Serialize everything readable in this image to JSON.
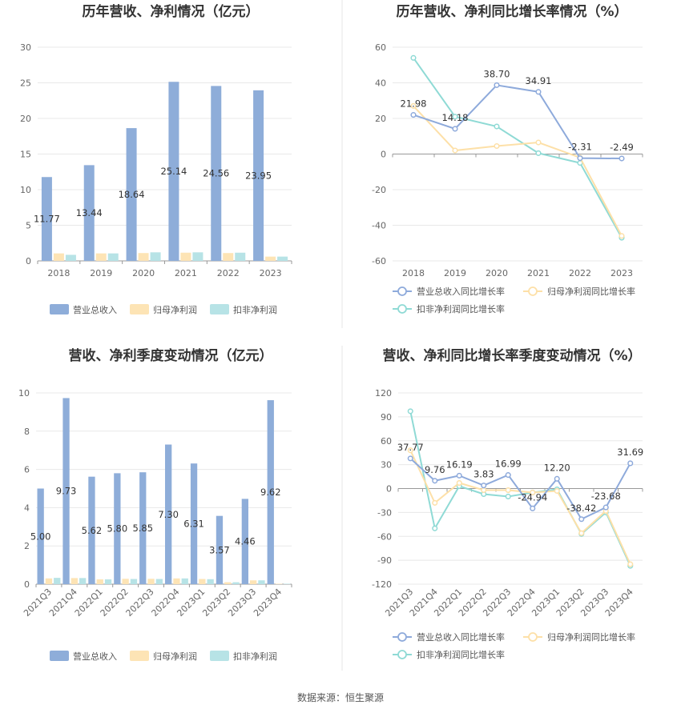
{
  "source": "数据来源：恒生聚源",
  "colors": {
    "revenue": "#8eadd9",
    "netprofit": "#fde4b5",
    "deducted": "#b7e3e6",
    "rev_line": "#8eaadb",
    "np_line": "#fde0a8",
    "ded_line": "#8fdad5"
  },
  "chart_data": [
    {
      "type": "bar",
      "title": "历年营收、净利情况（亿元）",
      "categories": [
        "2018",
        "2019",
        "2020",
        "2021",
        "2022",
        "2023"
      ],
      "ylim": [
        0,
        30
      ],
      "yticks": [
        0,
        5,
        10,
        15,
        20,
        25,
        30
      ],
      "legend_position": "bottom",
      "series": [
        {
          "name": "营业总收入",
          "values": [
            11.77,
            13.44,
            18.64,
            25.14,
            24.56,
            23.95
          ],
          "labels": [
            "11.77",
            "13.44",
            "18.64",
            "25.14",
            "24.56",
            "23.95"
          ]
        },
        {
          "name": "归母净利润",
          "values": [
            1.05,
            1.05,
            1.1,
            1.15,
            1.1,
            0.6
          ]
        },
        {
          "name": "扣非净利润",
          "values": [
            0.85,
            1.05,
            1.2,
            1.2,
            1.15,
            0.6
          ]
        }
      ]
    },
    {
      "type": "line",
      "title": "历年营收、净利同比增长率情况（%）",
      "categories": [
        "2018",
        "2019",
        "2020",
        "2021",
        "2022",
        "2023"
      ],
      "ylim": [
        -60,
        60
      ],
      "yticks": [
        -60,
        -40,
        -20,
        0,
        20,
        40,
        60
      ],
      "legend_position": "bottom",
      "series": [
        {
          "name": "营业总收入同比增长率",
          "values": [
            21.98,
            14.18,
            38.7,
            34.91,
            -2.31,
            -2.49
          ],
          "labels": [
            "21.98",
            "14.18",
            "38.70",
            "34.91",
            "-2.31",
            "-2.49"
          ]
        },
        {
          "name": "归母净利润同比增长率",
          "values": [
            27,
            2,
            4.5,
            6.5,
            -2,
            -46
          ]
        },
        {
          "name": "扣非净利润同比增长率",
          "values": [
            54,
            21,
            15.5,
            0.5,
            -5,
            -47
          ]
        }
      ]
    },
    {
      "type": "bar",
      "title": "营收、净利季度变动情况（亿元）",
      "categories": [
        "2021Q3",
        "2021Q4",
        "2022Q1",
        "2022Q2",
        "2022Q3",
        "2022Q4",
        "2023Q1",
        "2023Q2",
        "2023Q3",
        "2023Q4"
      ],
      "ylim": [
        0,
        10
      ],
      "yticks": [
        0,
        2,
        4,
        6,
        8,
        10
      ],
      "legend_position": "bottom",
      "series": [
        {
          "name": "营业总收入",
          "values": [
            5.0,
            9.73,
            5.62,
            5.8,
            5.85,
            7.3,
            6.31,
            3.57,
            4.46,
            9.62
          ],
          "labels": [
            "5.00",
            "9.73",
            "5.62",
            "5.80",
            "5.85",
            "7.30",
            "6.31",
            "3.57",
            "4.46",
            "9.62"
          ]
        },
        {
          "name": "归母净利润",
          "values": [
            0.3,
            0.32,
            0.25,
            0.28,
            0.28,
            0.3,
            0.27,
            0.1,
            0.2,
            0.02
          ]
        },
        {
          "name": "扣非净利润",
          "values": [
            0.33,
            0.32,
            0.25,
            0.27,
            0.27,
            0.3,
            0.26,
            0.1,
            0.2,
            0.02
          ]
        }
      ]
    },
    {
      "type": "line",
      "title": "营收、净利同比增长率季度变动情况（%）",
      "categories": [
        "2021Q3",
        "2021Q4",
        "2022Q1",
        "2022Q2",
        "2022Q3",
        "2022Q4",
        "2023Q1",
        "2023Q2",
        "2023Q3",
        "2023Q4"
      ],
      "ylim": [
        -120,
        120
      ],
      "yticks": [
        -120,
        -90,
        -60,
        -30,
        0,
        30,
        60,
        90,
        120
      ],
      "legend_position": "bottom",
      "series": [
        {
          "name": "营业总收入同比增长率",
          "values": [
            37.77,
            9.76,
            16.19,
            3.83,
            16.99,
            -24.94,
            12.2,
            -38.42,
            -23.68,
            31.69
          ],
          "labels": [
            "37.77",
            "9.76",
            "16.19",
            "3.83",
            "16.99",
            "-24.94",
            "12.20",
            "-38.42",
            "-23.68",
            "31.69"
          ]
        },
        {
          "name": "归母净利润同比增长率",
          "values": [
            48,
            -18,
            7,
            -2,
            -2,
            -5,
            -3,
            -56,
            -28,
            -95
          ]
        },
        {
          "name": "扣非净利润同比增长率",
          "values": [
            97,
            -50,
            3,
            -7,
            -10,
            -5,
            -1,
            -57,
            -30,
            -97
          ]
        }
      ]
    }
  ]
}
